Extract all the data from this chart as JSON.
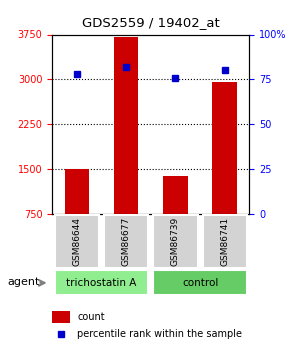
{
  "title": "GDS2559 / 19402_at",
  "samples": [
    "GSM86644",
    "GSM86677",
    "GSM86739",
    "GSM86741"
  ],
  "counts": [
    1500,
    3700,
    1380,
    2950
  ],
  "percentiles": [
    78,
    82,
    76,
    80
  ],
  "groups": [
    "trichostatin A",
    "trichostatin A",
    "control",
    "control"
  ],
  "group_colors": [
    "#90EE90",
    "#90EE90",
    "#66DD66",
    "#66DD66"
  ],
  "bar_color": "#CC0000",
  "dot_color": "#0000CC",
  "left_yticks": [
    750,
    1500,
    2250,
    3000,
    3750
  ],
  "right_yticks": [
    0,
    25,
    50,
    75,
    100
  ],
  "ymin": 750,
  "ymax": 3750,
  "pct_min": 0,
  "pct_max": 100,
  "legend_count_label": "count",
  "legend_pct_label": "percentile rank within the sample",
  "agent_label": "agent",
  "group_label_1": "trichostatin A",
  "group_label_2": "control"
}
